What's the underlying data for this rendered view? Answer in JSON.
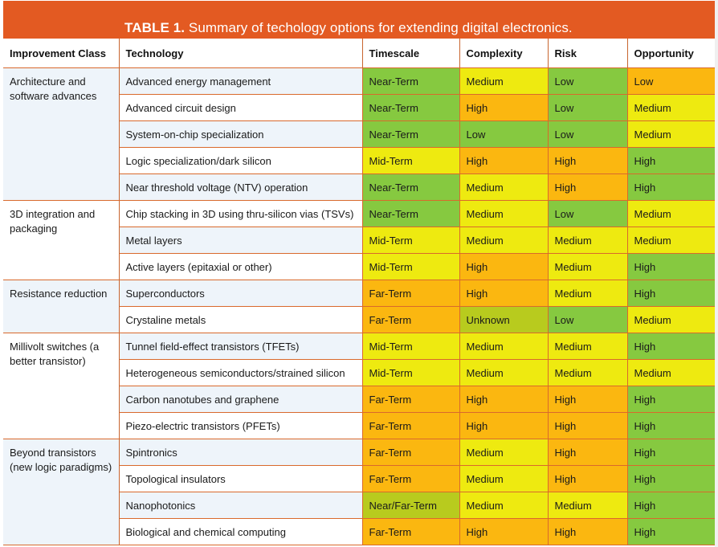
{
  "title": {
    "label": "TABLE 1.",
    "text": " Summary of techology options for extending digital electronics."
  },
  "colors": {
    "header_bar": "#e35a22",
    "green": "#86c940",
    "yellow": "#eeea10",
    "orange": "#fbb710",
    "olive": "#b8cb1e",
    "row_tint": "#eef4fa",
    "rule": "#d9692c"
  },
  "columns": [
    "Improvement Class",
    "Technology",
    "Timescale",
    "Complexity",
    "Risk",
    "Opportunity"
  ],
  "groups": [
    {
      "class": "Architecture and software advances",
      "rows": [
        {
          "technology": "Advanced energy management",
          "timescale": "Near-Term",
          "complexity": "Medium",
          "risk": "Low",
          "opportunity": "Low"
        },
        {
          "technology": "Advanced circuit design",
          "timescale": "Near-Term",
          "complexity": "High",
          "risk": "Low",
          "opportunity": "Medium"
        },
        {
          "technology": "System-on-chip specialization",
          "timescale": "Near-Term",
          "complexity": "Low",
          "risk": "Low",
          "opportunity": "Medium"
        },
        {
          "technology": "Logic specialization/dark silicon",
          "timescale": "Mid-Term",
          "complexity": "High",
          "risk": "High",
          "opportunity": "High"
        },
        {
          "technology": "Near threshold voltage (NTV) operation",
          "timescale": "Near-Term",
          "complexity": "Medium",
          "risk": "High",
          "opportunity": "High"
        }
      ]
    },
    {
      "class": "3D integration and packaging",
      "rows": [
        {
          "technology": "Chip stacking in 3D using thru-silicon vias (TSVs)",
          "timescale": "Near-Term",
          "complexity": "Medium",
          "risk": "Low",
          "opportunity": "Medium"
        },
        {
          "technology": "Metal layers",
          "timescale": "Mid-Term",
          "complexity": "Medium",
          "risk": "Medium",
          "opportunity": "Medium"
        },
        {
          "technology": "Active layers (epitaxial or other)",
          "timescale": "Mid-Term",
          "complexity": "High",
          "risk": "Medium",
          "opportunity": "High"
        }
      ]
    },
    {
      "class": "Resistance reduction",
      "rows": [
        {
          "technology": "Superconductors",
          "timescale": "Far-Term",
          "complexity": "High",
          "risk": "Medium",
          "opportunity": "High"
        },
        {
          "technology": "Crystaline metals",
          "timescale": "Far-Term",
          "complexity": "Unknown",
          "risk": "Low",
          "opportunity": "Medium"
        }
      ]
    },
    {
      "class": "Millivolt switches (a better transistor)",
      "rows": [
        {
          "technology": "Tunnel field-effect transistors (TFETs)",
          "timescale": "Mid-Term",
          "complexity": "Medium",
          "risk": "Medium",
          "opportunity": "High"
        },
        {
          "technology": "Heterogeneous semiconductors/strained silicon",
          "timescale": "Mid-Term",
          "complexity": "Medium",
          "risk": "Medium",
          "opportunity": "Medium"
        },
        {
          "technology": "Carbon nanotubes and graphene",
          "timescale": "Far-Term",
          "complexity": "High",
          "risk": "High",
          "opportunity": "High"
        },
        {
          "technology": "Piezo-electric transistors (PFETs)",
          "timescale": "Far-Term",
          "complexity": "High",
          "risk": "High",
          "opportunity": "High"
        }
      ]
    },
    {
      "class": "Beyond transistors (new logic paradigms)",
      "rows": [
        {
          "technology": "Spintronics",
          "timescale": "Far-Term",
          "complexity": "Medium",
          "risk": "High",
          "opportunity": "High"
        },
        {
          "technology": "Topological insulators",
          "timescale": "Far-Term",
          "complexity": "Medium",
          "risk": "High",
          "opportunity": "High"
        },
        {
          "technology": "Nanophotonics",
          "timescale": "Near/Far-Term",
          "complexity": "Medium",
          "risk": "Medium",
          "opportunity": "High"
        },
        {
          "technology": "Biological and chemical computing",
          "timescale": "Far-Term",
          "complexity": "High",
          "risk": "High",
          "opportunity": "High"
        }
      ]
    }
  ],
  "rating_colors": {
    "timescale": {
      "Near-Term": "green",
      "Mid-Term": "yellow",
      "Far-Term": "orange",
      "Near/Far-Term": "olive"
    },
    "complexity": {
      "Low": "green",
      "Medium": "yellow",
      "High": "orange",
      "Unknown": "olive"
    },
    "risk": {
      "Low": "green",
      "Medium": "yellow",
      "High": "orange"
    },
    "opportunity": {
      "Low": "orange",
      "Medium": "yellow",
      "High": "green"
    }
  }
}
